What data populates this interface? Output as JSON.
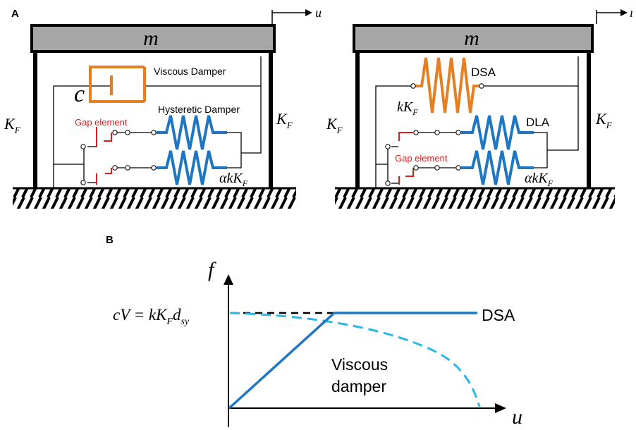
{
  "panel_a": {
    "letter": "A",
    "left": {
      "mass_label": "m",
      "displacement_label": "u",
      "column_stiffness_left": {
        "base": "K",
        "sub": "F"
      },
      "column_stiffness_right": {
        "base": "K",
        "sub": "F"
      },
      "viscous_coef": "c",
      "viscous_damper_label": "Viscous Damper",
      "hysteretic_damper_label": "Hysteretic Damper",
      "gap_element_label": "Gap element",
      "spring_stiffness": {
        "base": "αkK",
        "sub": "F"
      }
    },
    "right": {
      "mass_label": "m",
      "displacement_label": "ı",
      "column_stiffness_left": {
        "base": "K",
        "sub": "F"
      },
      "column_stiffness_right": {
        "base": "K",
        "sub": "F"
      },
      "dsa_label": "DSA",
      "dsa_stiffness": {
        "base": "kK",
        "sub": "F"
      },
      "dla_label": "DLA",
      "gap_element_label": "Gap element",
      "spring_stiffness": {
        "base": "αkK",
        "sub": "F"
      }
    }
  },
  "panel_b": {
    "letter": "B",
    "y_axis_label": "f",
    "x_axis_label": "u",
    "equation": {
      "lhs": "cV = kK",
      "sub1": "F",
      "mid": "d",
      "sub2": "sy"
    },
    "dsa_label": "DSA",
    "viscous_label_line1": "Viscous",
    "viscous_label_line2": "damper"
  },
  "colors": {
    "orange": "#e67e22",
    "blue": "#1f77c4",
    "light_blue": "#29b6e8",
    "red": "#e31a1c",
    "mass_gray": "#a6a6a6"
  }
}
